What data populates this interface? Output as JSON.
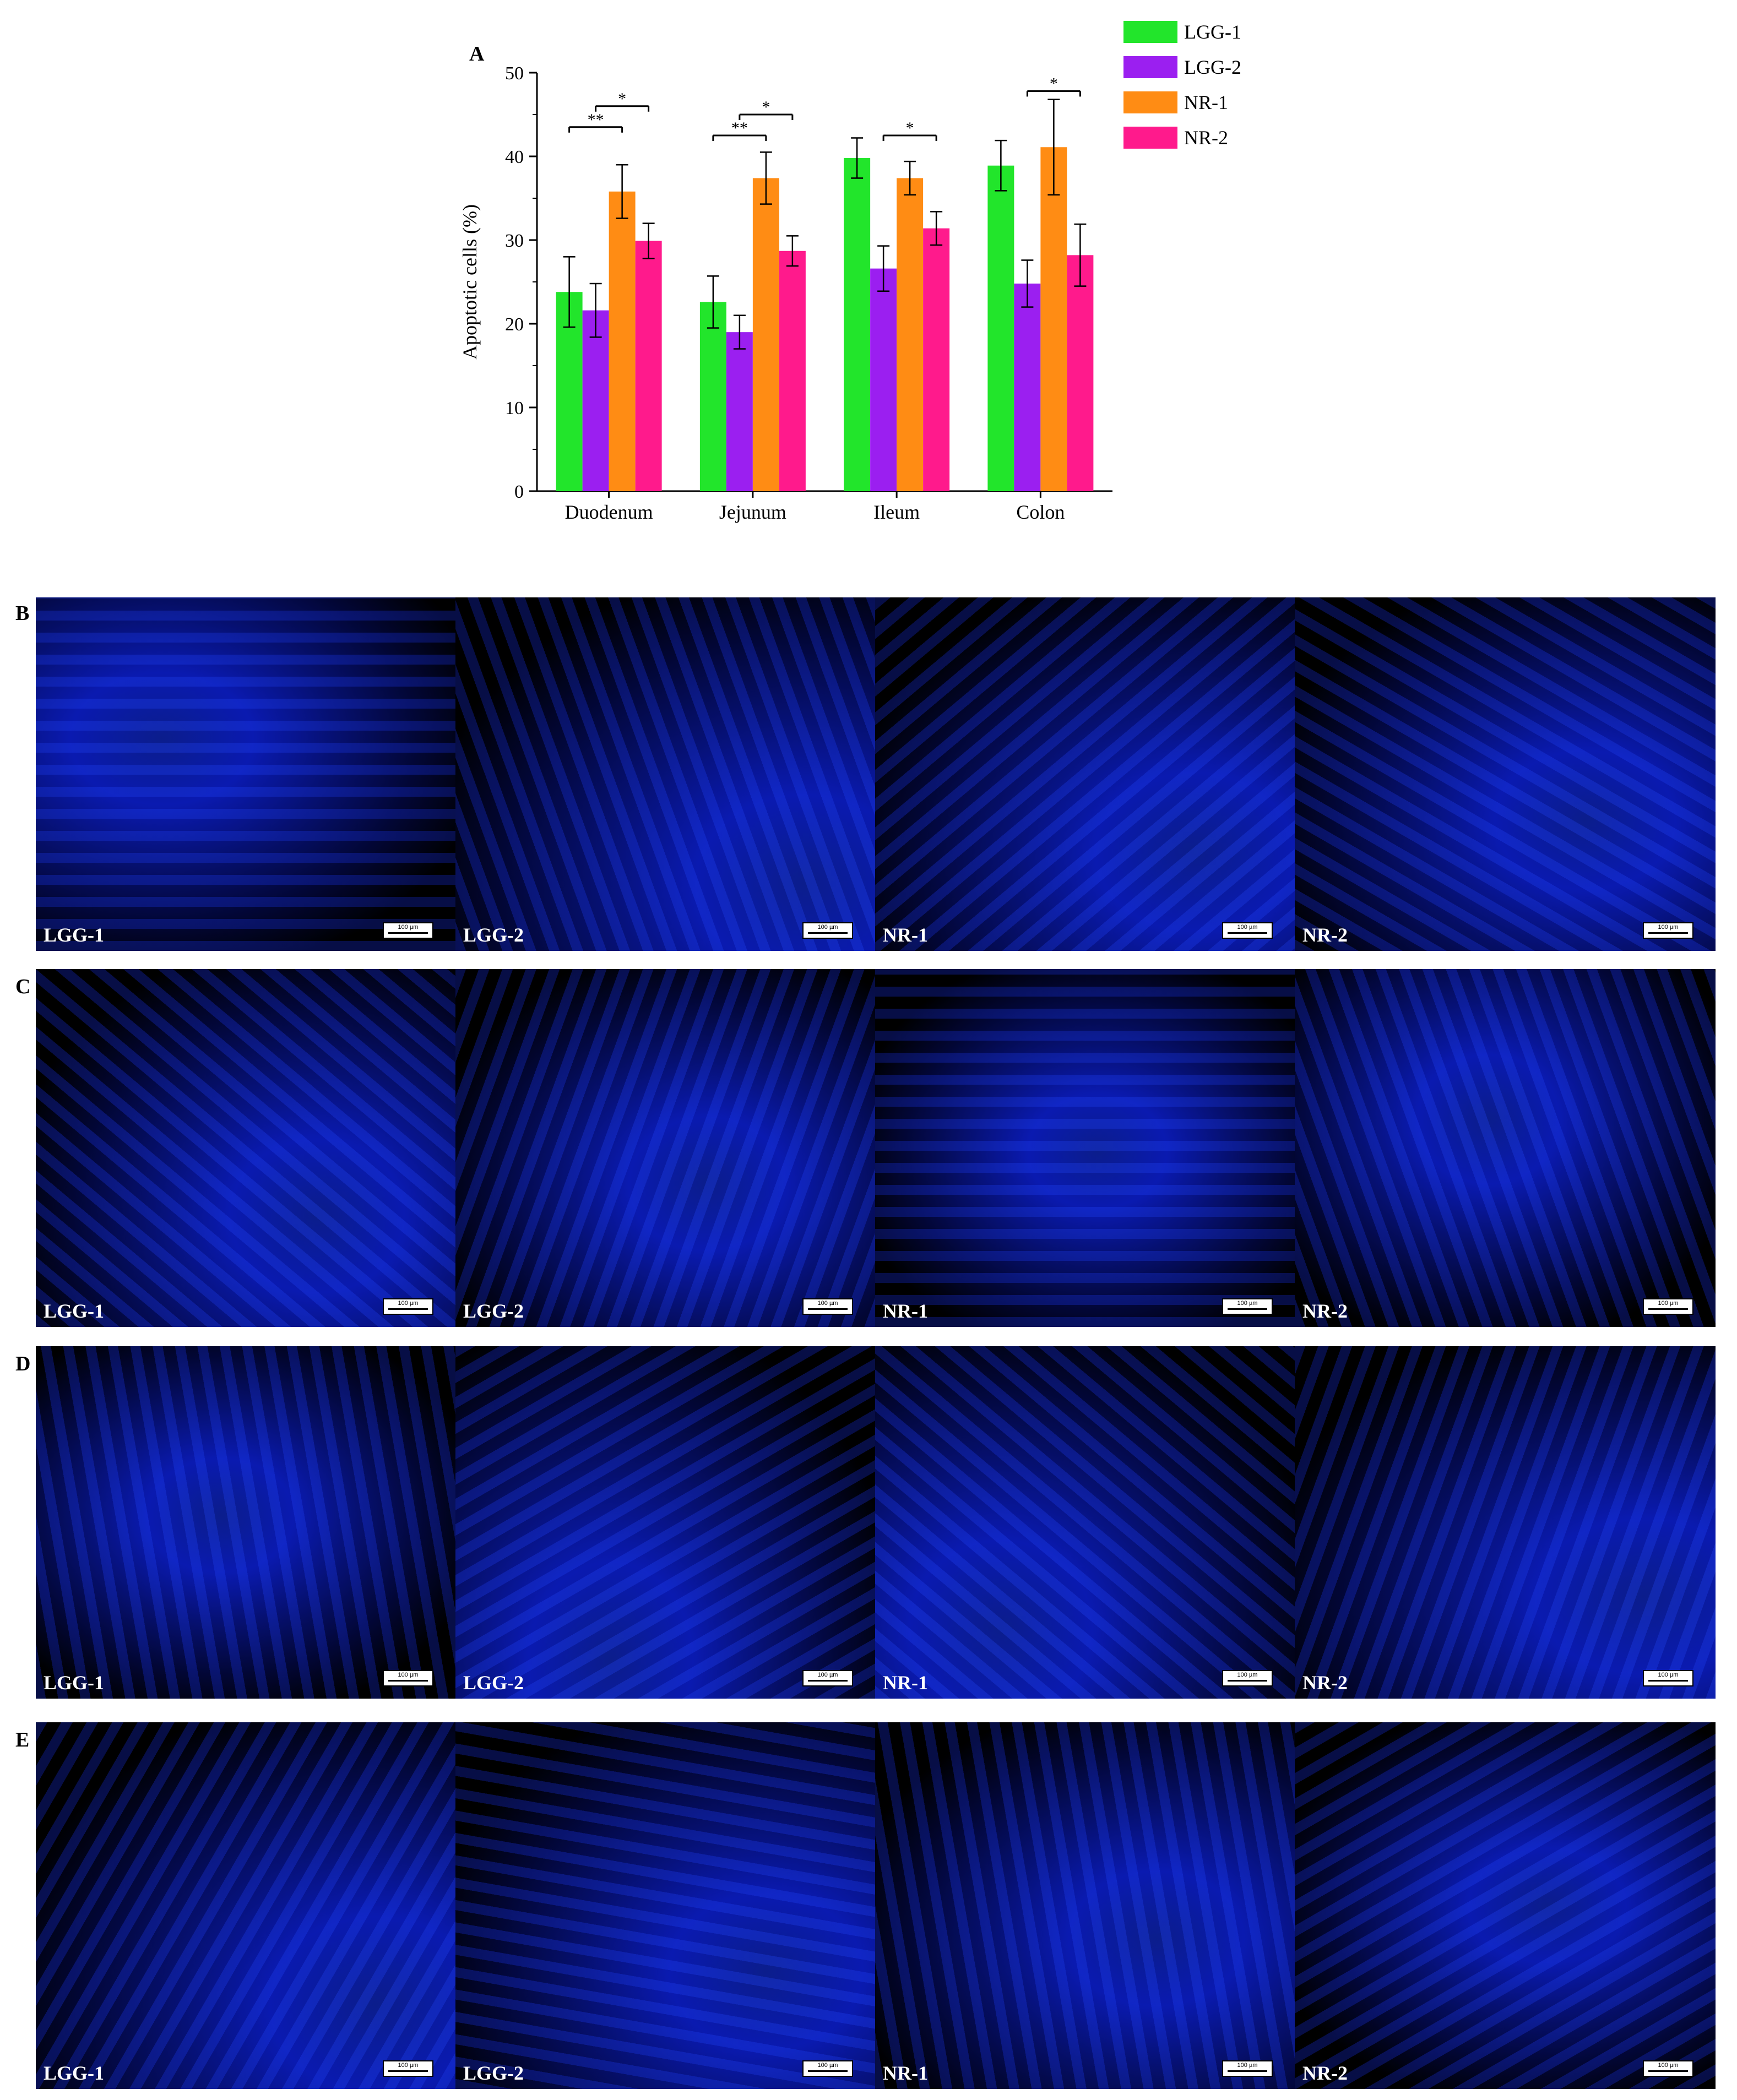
{
  "panel_labels": {
    "a": "A",
    "b": "B",
    "c": "C",
    "d": "D",
    "e": "E"
  },
  "chart_data": {
    "type": "bar",
    "ylabel": "Apoptotic cells (%)",
    "xlabel": "",
    "ylim": [
      0,
      50
    ],
    "yticks": [
      0,
      10,
      20,
      30,
      40,
      50
    ],
    "categories": [
      "Duodenum",
      "Jejunum",
      "Ileum",
      "Colon"
    ],
    "legend_position": "top-right",
    "series": [
      {
        "name": "LGG-1",
        "color": "#22e52b",
        "values": [
          23.8,
          22.6,
          39.8,
          38.9
        ],
        "errors": [
          4.2,
          3.1,
          2.4,
          3.0
        ]
      },
      {
        "name": "LGG-2",
        "color": "#9b1ff0",
        "values": [
          21.6,
          19.0,
          26.6,
          24.8
        ],
        "errors": [
          3.2,
          2.0,
          2.7,
          2.8
        ]
      },
      {
        "name": "NR-1",
        "color": "#ff8c14",
        "values": [
          35.8,
          37.4,
          37.4,
          41.1
        ],
        "errors": [
          3.2,
          3.1,
          2.0,
          5.7
        ]
      },
      {
        "name": "NR-2",
        "color": "#ff1a8c",
        "values": [
          29.9,
          28.7,
          31.4,
          28.2
        ],
        "errors": [
          2.1,
          1.8,
          2.0,
          3.7
        ]
      }
    ],
    "significance": [
      {
        "category": 0,
        "from": 0,
        "to": 2,
        "label": "**",
        "y": 43.5
      },
      {
        "category": 0,
        "from": 1,
        "to": 3,
        "label": "*",
        "y": 46.0
      },
      {
        "category": 1,
        "from": 0,
        "to": 2,
        "label": "**",
        "y": 42.5
      },
      {
        "category": 1,
        "from": 1,
        "to": 3,
        "label": "*",
        "y": 45.0
      },
      {
        "category": 2,
        "from": 1,
        "to": 3,
        "label": "*",
        "y": 42.5
      },
      {
        "category": 3,
        "from": 1,
        "to": 3,
        "label": "*",
        "y": 47.8
      }
    ]
  },
  "micrographs": {
    "scale_bar_text": "100 µm",
    "rows": [
      {
        "id": "B",
        "panels": [
          "LGG-1",
          "LGG-2",
          "NR-1",
          "NR-2"
        ]
      },
      {
        "id": "C",
        "panels": [
          "LGG-1",
          "LGG-2",
          "NR-1",
          "NR-2"
        ]
      },
      {
        "id": "D",
        "panels": [
          "LGG-1",
          "LGG-2",
          "NR-1",
          "NR-2"
        ]
      },
      {
        "id": "E",
        "panels": [
          "LGG-1",
          "LGG-2",
          "NR-1",
          "NR-2"
        ]
      }
    ]
  }
}
